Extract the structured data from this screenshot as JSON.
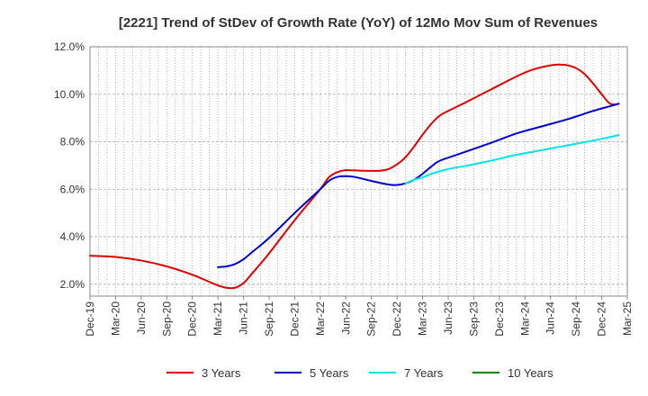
{
  "chart_data": {
    "type": "line",
    "title": "[2221]  Trend of StDev of Growth Rate (YoY) of 12Mo Mov Sum of Revenues",
    "xlabel": "",
    "ylabel": "",
    "ylim": [
      1.5,
      12.0
    ],
    "yticks": [
      2.0,
      4.0,
      6.0,
      8.0,
      10.0,
      12.0
    ],
    "ytick_labels": [
      "2.0%",
      "4.0%",
      "6.0%",
      "8.0%",
      "10.0%",
      "12.0%"
    ],
    "grid": true,
    "legend_position": "bottom",
    "x_tick_labels": [
      "Dec-19",
      "Mar-20",
      "Jun-20",
      "Sep-20",
      "Dec-20",
      "Mar-21",
      "Jun-21",
      "Sep-21",
      "Dec-21",
      "Mar-22",
      "Jun-22",
      "Sep-22",
      "Dec-22",
      "Mar-23",
      "Jun-23",
      "Sep-23",
      "Dec-23",
      "Mar-24",
      "Jun-24",
      "Sep-24",
      "Dec-24",
      "Mar-25"
    ],
    "x_range_months": [
      0,
      63
    ],
    "series": [
      {
        "name": "3 Years",
        "color": "#dd0000",
        "points": [
          [
            0,
            3.2
          ],
          [
            3,
            3.15
          ],
          [
            6,
            3.0
          ],
          [
            9,
            2.75
          ],
          [
            12,
            2.4
          ],
          [
            14,
            2.1
          ],
          [
            15,
            1.95
          ],
          [
            16,
            1.85
          ],
          [
            17,
            1.85
          ],
          [
            18,
            2.05
          ],
          [
            19,
            2.45
          ],
          [
            21,
            3.3
          ],
          [
            24,
            4.7
          ],
          [
            27,
            6.0
          ],
          [
            28,
            6.5
          ],
          [
            29,
            6.72
          ],
          [
            30,
            6.8
          ],
          [
            32,
            6.78
          ],
          [
            34,
            6.78
          ],
          [
            35,
            6.85
          ],
          [
            36,
            7.05
          ],
          [
            37,
            7.35
          ],
          [
            38,
            7.8
          ],
          [
            39,
            8.3
          ],
          [
            40,
            8.75
          ],
          [
            41,
            9.1
          ],
          [
            42,
            9.3
          ],
          [
            44,
            9.65
          ],
          [
            47,
            10.2
          ],
          [
            50,
            10.75
          ],
          [
            52,
            11.05
          ],
          [
            54,
            11.22
          ],
          [
            55,
            11.25
          ],
          [
            56,
            11.22
          ],
          [
            57,
            11.1
          ],
          [
            58,
            10.85
          ],
          [
            59,
            10.45
          ],
          [
            60,
            10.0
          ],
          [
            61,
            9.6
          ],
          [
            62,
            9.6
          ]
        ]
      },
      {
        "name": "5 Years",
        "color": "#0000cc",
        "points": [
          [
            15,
            2.72
          ],
          [
            16,
            2.75
          ],
          [
            17,
            2.85
          ],
          [
            18,
            3.05
          ],
          [
            19,
            3.35
          ],
          [
            21,
            3.95
          ],
          [
            24,
            5.0
          ],
          [
            27,
            6.0
          ],
          [
            28,
            6.35
          ],
          [
            29,
            6.52
          ],
          [
            30,
            6.55
          ],
          [
            31,
            6.52
          ],
          [
            33,
            6.35
          ],
          [
            35,
            6.2
          ],
          [
            36,
            6.18
          ],
          [
            37,
            6.25
          ],
          [
            38,
            6.4
          ],
          [
            39,
            6.65
          ],
          [
            40,
            6.95
          ],
          [
            41,
            7.2
          ],
          [
            43,
            7.45
          ],
          [
            47,
            7.95
          ],
          [
            50,
            8.35
          ],
          [
            53,
            8.65
          ],
          [
            56,
            8.95
          ],
          [
            59,
            9.3
          ],
          [
            61,
            9.5
          ],
          [
            62,
            9.6
          ]
        ]
      },
      {
        "name": "7 Years",
        "color": "#00e5e5",
        "points": [
          [
            37,
            6.25
          ],
          [
            38,
            6.4
          ],
          [
            39,
            6.5
          ],
          [
            40,
            6.65
          ],
          [
            42,
            6.85
          ],
          [
            44,
            6.98
          ],
          [
            47,
            7.2
          ],
          [
            50,
            7.45
          ],
          [
            53,
            7.65
          ],
          [
            56,
            7.85
          ],
          [
            59,
            8.05
          ],
          [
            61,
            8.2
          ],
          [
            62,
            8.28
          ]
        ]
      },
      {
        "name": "10 Years",
        "color": "#008800",
        "points": []
      }
    ]
  }
}
